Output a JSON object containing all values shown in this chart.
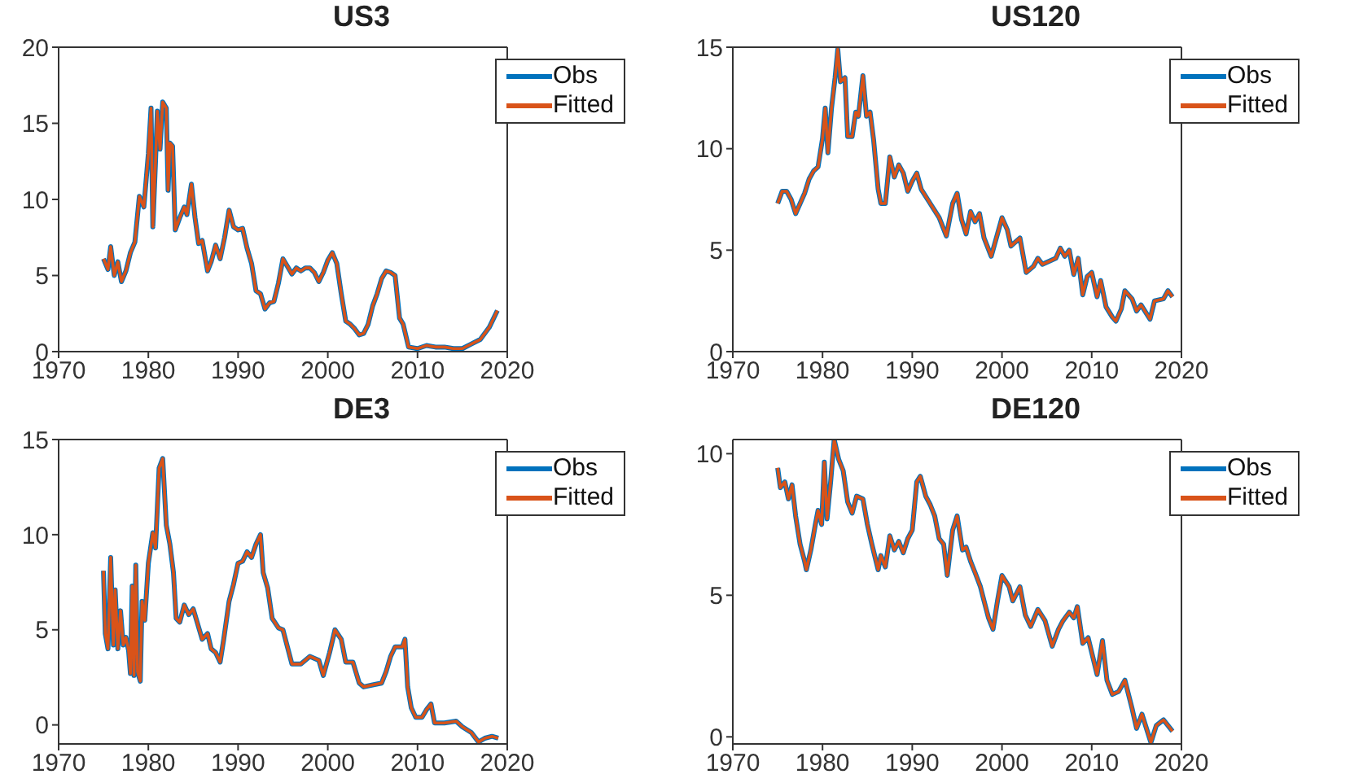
{
  "chart_data": [
    {
      "type": "line",
      "title": "US3",
      "legend": "top right",
      "grid": false,
      "xlim": [
        1970,
        2020
      ],
      "xticks": [
        1970,
        1980,
        1990,
        2000,
        2010,
        2020
      ],
      "ylim": [
        0,
        20
      ],
      "yticks": [
        0,
        5,
        10,
        15,
        20
      ],
      "x": [
        1975,
        1975.5,
        1975.8,
        1976.2,
        1976.6,
        1977,
        1977.5,
        1978,
        1978.5,
        1979,
        1979.5,
        1980,
        1980.3,
        1980.5,
        1980.8,
        1981,
        1981.3,
        1981.6,
        1982,
        1982.2,
        1982.4,
        1982.7,
        1983,
        1983.5,
        1984,
        1984.3,
        1984.8,
        1985.2,
        1985.6,
        1986,
        1986.6,
        1987,
        1987.5,
        1988,
        1988.5,
        1989,
        1989.5,
        1990,
        1990.5,
        1991,
        1991.5,
        1992,
        1992.5,
        1993,
        1993.5,
        1994,
        1994.5,
        1995,
        1995.5,
        1996,
        1996.5,
        1997,
        1997.5,
        1998,
        1998.5,
        1999,
        1999.5,
        2000,
        2000.5,
        2001,
        2001.5,
        2002,
        2002.5,
        2003,
        2003.5,
        2004,
        2004.5,
        2005,
        2005.5,
        2006,
        2006.5,
        2007,
        2007.5,
        2008,
        2008.4,
        2009,
        2010,
        2011,
        2012,
        2013,
        2014,
        2015,
        2016,
        2017,
        2018,
        2018.9
      ],
      "series": [
        {
          "name": "Obs",
          "color": "#0072bd",
          "values": [
            6.1,
            5.4,
            6.9,
            5.0,
            5.9,
            4.6,
            5.3,
            6.5,
            7.2,
            10.2,
            9.5,
            13.0,
            16.0,
            8.2,
            12.5,
            15.8,
            13.3,
            16.4,
            16.0,
            10.6,
            13.7,
            13.5,
            8.0,
            8.8,
            9.5,
            9.0,
            11.0,
            8.8,
            7.1,
            7.3,
            5.3,
            5.9,
            7.0,
            6.1,
            7.5,
            9.3,
            8.2,
            8.0,
            8.1,
            6.8,
            5.8,
            4.0,
            3.8,
            2.8,
            3.2,
            3.3,
            4.5,
            6.1,
            5.6,
            5.1,
            5.5,
            5.3,
            5.5,
            5.5,
            5.2,
            4.6,
            5.2,
            6.0,
            6.5,
            5.8,
            3.8,
            2.0,
            1.8,
            1.5,
            1.1,
            1.2,
            1.8,
            3.0,
            3.8,
            4.8,
            5.3,
            5.2,
            5.0,
            2.2,
            1.8,
            0.3,
            0.2,
            0.4,
            0.3,
            0.3,
            0.2,
            0.2,
            0.5,
            0.8,
            1.6,
            2.7
          ]
        },
        {
          "name": "Fitted",
          "color": "#d95319",
          "values": [
            6.1,
            5.4,
            6.9,
            5.0,
            5.9,
            4.6,
            5.3,
            6.5,
            7.2,
            10.2,
            9.5,
            13.0,
            16.0,
            8.2,
            12.5,
            15.8,
            13.3,
            16.4,
            16.0,
            10.6,
            13.7,
            13.5,
            8.0,
            8.8,
            9.5,
            9.0,
            11.0,
            8.8,
            7.1,
            7.3,
            5.3,
            5.9,
            7.0,
            6.1,
            7.5,
            9.3,
            8.2,
            8.0,
            8.1,
            6.8,
            5.8,
            4.0,
            3.8,
            2.8,
            3.2,
            3.3,
            4.5,
            6.1,
            5.6,
            5.1,
            5.5,
            5.3,
            5.5,
            5.5,
            5.2,
            4.6,
            5.2,
            6.0,
            6.5,
            5.8,
            3.8,
            2.0,
            1.8,
            1.5,
            1.1,
            1.2,
            1.8,
            3.0,
            3.8,
            4.8,
            5.3,
            5.2,
            5.0,
            2.2,
            1.8,
            0.3,
            0.2,
            0.4,
            0.3,
            0.3,
            0.2,
            0.2,
            0.5,
            0.8,
            1.6,
            2.7
          ]
        }
      ]
    },
    {
      "type": "line",
      "title": "US120",
      "legend": "top right",
      "grid": false,
      "xlim": [
        1970,
        2020
      ],
      "xticks": [
        1970,
        1980,
        1990,
        2000,
        2010,
        2020
      ],
      "ylim": [
        0,
        15
      ],
      "yticks": [
        0,
        5,
        10,
        15
      ],
      "x": [
        1975,
        1975.5,
        1976,
        1976.5,
        1977,
        1977.5,
        1978,
        1978.5,
        1979,
        1979.5,
        1980,
        1980.3,
        1980.6,
        1981,
        1981.4,
        1981.7,
        1982,
        1982.5,
        1982.8,
        1983.3,
        1983.7,
        1984,
        1984.5,
        1984.9,
        1985.3,
        1985.7,
        1986.2,
        1986.5,
        1987,
        1987.5,
        1988,
        1988.5,
        1989,
        1989.5,
        1990,
        1990.5,
        1991,
        1992,
        1993,
        1993.8,
        1994.5,
        1995,
        1995.5,
        1996,
        1996.5,
        1997,
        1997.5,
        1998,
        1998.8,
        1999.5,
        2000,
        2000.6,
        2001,
        2002,
        2002.7,
        2003.5,
        2004,
        2004.5,
        2005,
        2006,
        2006.5,
        2007,
        2007.5,
        2008,
        2008.5,
        2009,
        2009.5,
        2010,
        2010.6,
        2011,
        2011.6,
        2012.3,
        2012.7,
        2013.3,
        2013.7,
        2014.5,
        2015,
        2015.5,
        2016.5,
        2017,
        2018,
        2018.5,
        2019
      ],
      "series": [
        {
          "name": "Obs",
          "color": "#0072bd",
          "values": [
            7.3,
            7.9,
            7.9,
            7.5,
            6.8,
            7.3,
            7.8,
            8.5,
            8.9,
            9.1,
            10.5,
            12.0,
            9.8,
            12.0,
            13.5,
            14.9,
            13.3,
            13.5,
            10.6,
            10.6,
            11.8,
            11.6,
            13.6,
            11.6,
            11.8,
            10.4,
            8.0,
            7.3,
            7.3,
            9.6,
            8.6,
            9.2,
            8.8,
            7.9,
            8.4,
            8.8,
            8.0,
            7.3,
            6.6,
            5.7,
            7.3,
            7.8,
            6.5,
            5.8,
            6.9,
            6.4,
            6.8,
            5.6,
            4.7,
            5.8,
            6.6,
            6.0,
            5.2,
            5.6,
            3.9,
            4.2,
            4.6,
            4.3,
            4.4,
            4.6,
            5.1,
            4.7,
            5.0,
            3.8,
            4.6,
            2.8,
            3.7,
            3.9,
            2.7,
            3.5,
            2.2,
            1.7,
            1.5,
            2.1,
            3.0,
            2.6,
            2.0,
            2.3,
            1.6,
            2.5,
            2.6,
            3.0,
            2.7
          ]
        },
        {
          "name": "Fitted",
          "color": "#d95319",
          "values": [
            7.3,
            7.9,
            7.9,
            7.5,
            6.8,
            7.3,
            7.8,
            8.5,
            8.9,
            9.1,
            10.5,
            12.0,
            9.8,
            12.0,
            13.5,
            14.9,
            13.3,
            13.5,
            10.6,
            10.6,
            11.8,
            11.6,
            13.6,
            11.6,
            11.8,
            10.4,
            8.0,
            7.3,
            7.3,
            9.6,
            8.6,
            9.2,
            8.8,
            7.9,
            8.4,
            8.8,
            8.0,
            7.3,
            6.6,
            5.7,
            7.3,
            7.8,
            6.5,
            5.8,
            6.9,
            6.4,
            6.8,
            5.6,
            4.7,
            5.8,
            6.6,
            6.0,
            5.2,
            5.6,
            3.9,
            4.2,
            4.6,
            4.3,
            4.4,
            4.6,
            5.1,
            4.7,
            5.0,
            3.8,
            4.6,
            2.8,
            3.7,
            3.9,
            2.7,
            3.5,
            2.2,
            1.7,
            1.5,
            2.1,
            3.0,
            2.6,
            2.0,
            2.3,
            1.6,
            2.5,
            2.6,
            3.0,
            2.7
          ]
        }
      ]
    },
    {
      "type": "line",
      "title": "DE3",
      "legend": "top right",
      "grid": false,
      "xlim": [
        1970,
        2020
      ],
      "xticks": [
        1970,
        1980,
        1990,
        2000,
        2010,
        2020
      ],
      "ylim": [
        -1,
        15
      ],
      "yticks": [
        0,
        5,
        10,
        15
      ],
      "x": [
        1975,
        1975.2,
        1975.5,
        1975.8,
        1976.1,
        1976.3,
        1976.6,
        1976.9,
        1977.2,
        1977.5,
        1977.8,
        1978,
        1978.2,
        1978.4,
        1978.6,
        1978.8,
        1979.1,
        1979.3,
        1979.6,
        1980,
        1980.5,
        1980.8,
        1981.2,
        1981.6,
        1982,
        1982.4,
        1982.8,
        1983.1,
        1983.5,
        1984,
        1984.5,
        1985,
        1985.5,
        1986,
        1986.6,
        1987,
        1987.5,
        1988,
        1988.4,
        1989,
        1989.5,
        1990,
        1990.5,
        1991,
        1991.5,
        1992,
        1992.5,
        1992.8,
        1993.3,
        1993.8,
        1994.5,
        1995,
        1995.5,
        1996,
        1997,
        1998,
        1999,
        1999.5,
        2000.2,
        2000.8,
        2001.5,
        2002,
        2002.8,
        2003.5,
        2004,
        2005,
        2006,
        2006.5,
        2007,
        2007.5,
        2008.3,
        2008.6,
        2008.9,
        2009.3,
        2009.8,
        2010.5,
        2011,
        2011.5,
        2011.9,
        2013,
        2014.3,
        2015,
        2016,
        2016.8,
        2017.5,
        2018.3,
        2019
      ],
      "series": [
        {
          "name": "Obs",
          "color": "#0072bd",
          "values": [
            8.1,
            4.8,
            4.0,
            8.8,
            4.2,
            7.1,
            4.0,
            6.0,
            4.2,
            4.6,
            3.9,
            2.7,
            7.3,
            2.6,
            8.4,
            2.8,
            2.3,
            6.5,
            5.5,
            8.5,
            10.1,
            9.3,
            13.5,
            14.0,
            10.5,
            9.5,
            8.0,
            5.6,
            5.4,
            6.3,
            5.8,
            6.1,
            5.3,
            4.5,
            4.8,
            4.0,
            3.8,
            3.3,
            4.5,
            6.5,
            7.4,
            8.5,
            8.6,
            9.1,
            8.8,
            9.5,
            10.0,
            8.0,
            7.2,
            5.6,
            5.1,
            5.0,
            4.1,
            3.2,
            3.2,
            3.6,
            3.4,
            2.6,
            3.8,
            5.0,
            4.5,
            3.3,
            3.3,
            2.2,
            2.0,
            2.1,
            2.2,
            2.8,
            3.6,
            4.1,
            4.1,
            4.5,
            2.0,
            0.9,
            0.4,
            0.4,
            0.8,
            1.1,
            0.1,
            0.1,
            0.2,
            -0.1,
            -0.4,
            -0.9,
            -0.7,
            -0.6,
            -0.7
          ]
        },
        {
          "name": "Fitted",
          "color": "#d95319",
          "values": [
            8.1,
            4.8,
            4.0,
            8.8,
            4.2,
            7.1,
            4.0,
            6.0,
            4.2,
            4.6,
            3.9,
            2.7,
            7.3,
            2.6,
            8.4,
            2.8,
            2.3,
            6.5,
            5.5,
            8.5,
            10.1,
            9.3,
            13.5,
            14.0,
            10.5,
            9.5,
            8.0,
            5.6,
            5.4,
            6.3,
            5.8,
            6.1,
            5.3,
            4.5,
            4.8,
            4.0,
            3.8,
            3.3,
            4.5,
            6.5,
            7.4,
            8.5,
            8.6,
            9.1,
            8.8,
            9.5,
            10.0,
            8.0,
            7.2,
            5.6,
            5.1,
            5.0,
            4.1,
            3.2,
            3.2,
            3.6,
            3.4,
            2.6,
            3.8,
            5.0,
            4.5,
            3.3,
            3.3,
            2.2,
            2.0,
            2.1,
            2.2,
            2.8,
            3.6,
            4.1,
            4.1,
            4.5,
            2.0,
            0.9,
            0.4,
            0.4,
            0.8,
            1.1,
            0.1,
            0.1,
            0.2,
            -0.1,
            -0.4,
            -0.9,
            -0.7,
            -0.6,
            -0.7
          ]
        }
      ]
    },
    {
      "type": "line",
      "title": "DE120",
      "legend": "top right",
      "grid": false,
      "xlim": [
        1970,
        2020
      ],
      "xticks": [
        1970,
        1980,
        1990,
        2000,
        2010,
        2020
      ],
      "ylim": [
        -0.25,
        10.5
      ],
      "yticks": [
        0,
        5,
        10
      ],
      "x": [
        1975,
        1975.3,
        1975.8,
        1976.2,
        1976.6,
        1977,
        1977.5,
        1978,
        1978.2,
        1978.7,
        1979.2,
        1979.5,
        1979.9,
        1980.2,
        1980.5,
        1980.9,
        1981.3,
        1981.8,
        1982.3,
        1982.8,
        1983.3,
        1983.8,
        1984.5,
        1985,
        1985.5,
        1986.2,
        1986.5,
        1987,
        1987.5,
        1988,
        1988.5,
        1989,
        1989.5,
        1990,
        1990.5,
        1990.9,
        1991.5,
        1992,
        1992.5,
        1993,
        1993.5,
        1993.9,
        1994.5,
        1995,
        1995.6,
        1996,
        1996.5,
        1997,
        1997.6,
        1998,
        1998.5,
        1999,
        1999.5,
        2000,
        2000.8,
        2001.2,
        2002,
        2002.6,
        2003.2,
        2004,
        2004.8,
        2005.6,
        2006.3,
        2006.8,
        2007.5,
        2008,
        2008.4,
        2009,
        2009.6,
        2010.6,
        2011.2,
        2011.7,
        2012.3,
        2013,
        2013.7,
        2014.5,
        2015,
        2015.6,
        2016.6,
        2017.2,
        2018,
        2018.5,
        2019
      ],
      "series": [
        {
          "name": "Obs",
          "color": "#0072bd",
          "values": [
            9.5,
            8.8,
            9.0,
            8.4,
            8.9,
            7.8,
            6.8,
            6.2,
            5.9,
            6.6,
            7.5,
            8.0,
            7.5,
            9.7,
            7.7,
            9.0,
            10.5,
            9.8,
            9.4,
            8.3,
            7.9,
            8.5,
            8.4,
            7.5,
            6.8,
            5.9,
            6.4,
            6.0,
            7.1,
            6.6,
            6.9,
            6.5,
            7.0,
            7.3,
            9.0,
            9.2,
            8.5,
            8.2,
            7.8,
            7.0,
            6.8,
            5.7,
            7.3,
            7.8,
            6.6,
            6.7,
            6.2,
            5.8,
            5.3,
            4.8,
            4.2,
            3.8,
            4.8,
            5.7,
            5.3,
            4.8,
            5.3,
            4.3,
            3.9,
            4.5,
            4.1,
            3.2,
            3.8,
            4.1,
            4.4,
            4.2,
            4.6,
            3.3,
            3.5,
            2.2,
            3.4,
            2.0,
            1.5,
            1.6,
            2.0,
            1.0,
            0.3,
            0.8,
            -0.2,
            0.4,
            0.6,
            0.4,
            0.2
          ]
        },
        {
          "name": "Fitted",
          "color": "#d95319",
          "values": [
            9.5,
            8.8,
            9.0,
            8.4,
            8.9,
            7.8,
            6.8,
            6.2,
            5.9,
            6.6,
            7.5,
            8.0,
            7.5,
            9.7,
            7.7,
            9.0,
            10.5,
            9.8,
            9.4,
            8.3,
            7.9,
            8.5,
            8.4,
            7.5,
            6.8,
            5.9,
            6.4,
            6.0,
            7.1,
            6.6,
            6.9,
            6.5,
            7.0,
            7.3,
            9.0,
            9.2,
            8.5,
            8.2,
            7.8,
            7.0,
            6.8,
            5.7,
            7.3,
            7.8,
            6.6,
            6.7,
            6.2,
            5.8,
            5.3,
            4.8,
            4.2,
            3.8,
            4.8,
            5.7,
            5.3,
            4.8,
            5.3,
            4.3,
            3.9,
            4.5,
            4.1,
            3.2,
            3.8,
            4.1,
            4.4,
            4.2,
            4.6,
            3.3,
            3.5,
            2.2,
            3.4,
            2.0,
            1.5,
            1.6,
            2.0,
            1.0,
            0.3,
            0.8,
            -0.2,
            0.4,
            0.6,
            0.4,
            0.2
          ]
        }
      ]
    }
  ]
}
